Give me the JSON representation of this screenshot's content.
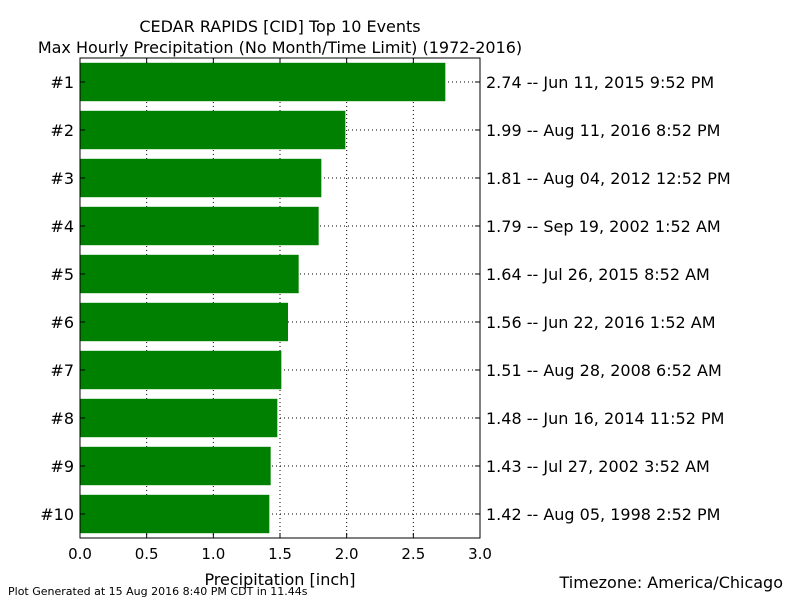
{
  "chart_data": {
    "type": "bar",
    "orientation": "horizontal",
    "title": "CEDAR RAPIDS [CID] Top 10 Events",
    "subtitle": "Max Hourly Precipitation (No Month/Time Limit) (1972-2016)",
    "xlabel": "Precipitation [inch]",
    "xlim": [
      0.0,
      3.0
    ],
    "xticks": [
      "0.0",
      "0.5",
      "1.0",
      "1.5",
      "2.0",
      "2.5",
      "3.0"
    ],
    "grid": true,
    "bar_color": "#008000",
    "categories": [
      "#1",
      "#2",
      "#3",
      "#4",
      "#5",
      "#6",
      "#7",
      "#8",
      "#9",
      "#10"
    ],
    "values": [
      2.74,
      1.99,
      1.81,
      1.79,
      1.64,
      1.56,
      1.51,
      1.48,
      1.43,
      1.42
    ],
    "event_labels": [
      "2.74 -- Jun 11, 2015 9:52 PM",
      "1.99 -- Aug 11, 2016 8:52 PM",
      "1.81 -- Aug 04, 2012 12:52 PM",
      "1.79 -- Sep 19, 2002 1:52 AM",
      "1.64 -- Jul 26, 2015 8:52 AM",
      "1.56 -- Jun 22, 2016 1:52 AM",
      "1.51 -- Aug 28, 2008 6:52 AM",
      "1.48 -- Jun 16, 2014 11:52 PM",
      "1.43 -- Jul 27, 2002 3:52 AM",
      "1.42 -- Aug 05, 1998 2:52 PM"
    ]
  },
  "footer": {
    "generated": "Plot Generated at 15 Aug 2016 8:40 PM CDT in 11.44s",
    "timezone": "Timezone: America/Chicago"
  }
}
